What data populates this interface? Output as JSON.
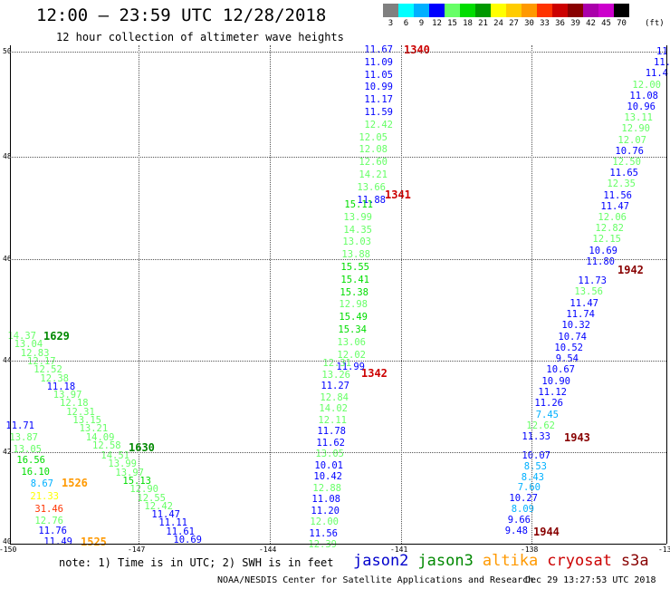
{
  "header": {
    "title": "12:00 – 23:59 UTC 12/28/2018",
    "subtitle": "12 hour collection of altimeter wave heights"
  },
  "legend": {
    "unit": "(ft)",
    "bins": [
      {
        "label": "3",
        "color": "#808080"
      },
      {
        "label": "6",
        "color": "#00ffff"
      },
      {
        "label": "9",
        "color": "#00b0ff"
      },
      {
        "label": "12",
        "color": "#0000ff"
      },
      {
        "label": "15",
        "color": "#66ff66"
      },
      {
        "label": "18",
        "color": "#00dd00"
      },
      {
        "label": "21",
        "color": "#009900"
      },
      {
        "label": "24",
        "color": "#ffff00"
      },
      {
        "label": "27",
        "color": "#ffcc00"
      },
      {
        "label": "30",
        "color": "#ff9900"
      },
      {
        "label": "33",
        "color": "#ff3300"
      },
      {
        "label": "36",
        "color": "#cc0000"
      },
      {
        "label": "39",
        "color": "#880000"
      },
      {
        "label": "42",
        "color": "#aa00aa"
      },
      {
        "label": "45",
        "color": "#cc00cc"
      },
      {
        "label": "70",
        "color": "#000000"
      }
    ]
  },
  "axes": {
    "lat_labels": [
      "50",
      "48",
      "46",
      "44",
      "42",
      "40"
    ],
    "lon_labels": [
      "-150",
      "-147",
      "-144",
      "-141",
      "-138",
      "-13"
    ]
  },
  "tracks": {
    "t1340": {
      "label": "1340",
      "values": [
        "11.67",
        "11.09",
        "11.05",
        "10.99",
        "11.17",
        "11.59",
        "12.42",
        "12.05",
        "12.08",
        "12.60",
        "14.21",
        "13.66",
        "11.88"
      ]
    },
    "t1341": {
      "label": "1341",
      "values": [
        "15.11",
        "13.99",
        "14.35",
        "13.03",
        "13.88",
        "15.55",
        "15.41",
        "15.38",
        "12.98",
        "15.49",
        "15.34",
        "13.06",
        "12.02",
        "11.99"
      ]
    },
    "t1342": {
      "label": "1342",
      "values": [
        "12.31",
        "13.26",
        "11.27",
        "12.84",
        "14.02",
        "12.11",
        "11.78",
        "11.62",
        "13.05",
        "10.01",
        "10.42",
        "12.88",
        "11.08",
        "11.20",
        "12.00",
        "11.56",
        "12.39"
      ]
    },
    "t1629": {
      "label": "1629",
      "values": [
        "14.37",
        "13.04",
        "12.83",
        "12.17",
        "12.52",
        "12.38",
        "11.18",
        "13.97",
        "12.18",
        "12.31",
        "13.15",
        "13.21",
        "14.09",
        "12.58"
      ]
    },
    "t1630": {
      "label": "1630",
      "values": [
        "14.51",
        "13.99",
        "13.97",
        "15.13",
        "12.90",
        "12.55",
        "12.42",
        "11.47",
        "11.11",
        "11.61",
        "10.69"
      ]
    },
    "left_extra": {
      "values": [
        "11.71",
        "13.87",
        "13.05",
        "16.56",
        "16.10",
        "8.67",
        "21.33",
        "31.46",
        "12.76",
        "11.76",
        "11.49"
      ]
    },
    "t1526": {
      "label": "1526"
    },
    "t1525": {
      "label": "1525"
    },
    "t1942": {
      "label": "1942",
      "values": [
        "11.",
        "11.",
        "11.4",
        "12.00",
        "11.08",
        "10.96",
        "13.11",
        "12.90",
        "12.07",
        "10.76",
        "12.50",
        "11.65",
        "12.35",
        "11.56",
        "11.47",
        "12.06",
        "12.82",
        "12.15",
        "10.69",
        "11.80"
      ]
    },
    "t1943": {
      "label": "1943",
      "values": [
        "11.73",
        "13.56",
        "11.47",
        "11.74",
        "10.32",
        "10.74",
        "10.52",
        "9.54",
        "10.67",
        "10.90",
        "11.12",
        "11.26",
        "7.45",
        "12.62",
        "11.33"
      ]
    },
    "t1944": {
      "label": "1944",
      "values": [
        "10.07",
        "8.53",
        "8.43",
        "7.60",
        "10.27",
        "8.09",
        "9.66",
        "9.48"
      ]
    }
  },
  "footer": {
    "note": "note: 1) Time is in UTC; 2) SWH is in feet",
    "satellites": [
      {
        "name": "jason2",
        "color": "#0000cc"
      },
      {
        "name": "jason3",
        "color": "#008800"
      },
      {
        "name": "altika",
        "color": "#ff9900"
      },
      {
        "name": "cryosat",
        "color": "#cc0000"
      },
      {
        "name": "s3a",
        "color": "#880000"
      }
    ],
    "credit": "NOAA/NESDIS Center for Satellite Applications and Research",
    "timestamp": "Dec 29 13:27:53 UTC 2018"
  }
}
